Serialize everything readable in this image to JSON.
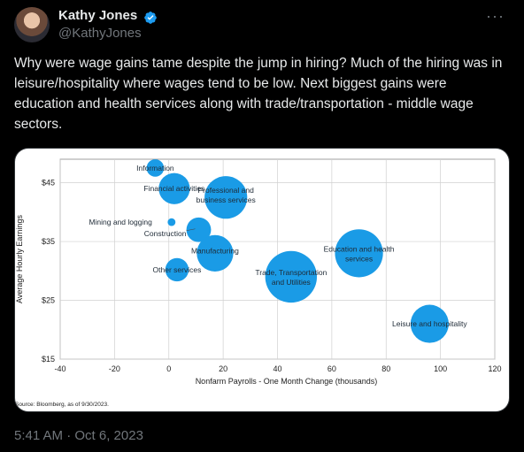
{
  "author": {
    "name": "Kathy Jones",
    "handle": "@KathyJones",
    "verified_color": "#1d9bf0"
  },
  "menu_icon": "more-horizontal-icon",
  "tweet": {
    "text": "Why were wage gains tame despite the jump in hiring? Much of the hiring was in leisure/hospitality where wages tend to be low. Next biggest gains were education and health services along with trade/transportation - middle wage sectors.",
    "timestamp": "5:41 AM · Oct 6, 2023"
  },
  "chart_data": {
    "type": "scatter",
    "bubble": true,
    "xlabel": "Nonfarm Payrolls - One Month Change (thousands)",
    "ylabel": "Average Hourly Earnings",
    "xlim": [
      -40,
      120
    ],
    "ylim": [
      15,
      49
    ],
    "xticks": [
      "-40",
      "-20",
      "0",
      "20",
      "40",
      "60",
      "80",
      "100",
      "120"
    ],
    "yticks": [
      "$15",
      "$25",
      "$35",
      "$45"
    ],
    "ytick_values": [
      15,
      25,
      35,
      45
    ],
    "xtick_values": [
      -40,
      -20,
      0,
      20,
      40,
      60,
      80,
      100,
      120
    ],
    "grid": true,
    "bubble_color": "#1a9be6",
    "points": [
      {
        "label": "Information",
        "x": -5,
        "y": 47.5,
        "size": 5
      },
      {
        "label": "Financial activities",
        "x": 2,
        "y": 44,
        "size": 16
      },
      {
        "label": "Professional and business services",
        "x": 21,
        "y": 42.5,
        "size": 30
      },
      {
        "label": "Mining and logging",
        "x": 1,
        "y": 38.3,
        "size": 1
      },
      {
        "label": "Construction",
        "x": 11,
        "y": 37,
        "size": 10
      },
      {
        "label": "Manufacturing",
        "x": 17,
        "y": 33,
        "size": 22
      },
      {
        "label": "Other services",
        "x": 3,
        "y": 30.2,
        "size": 9
      },
      {
        "label": "Trade, Transportation and Utilities",
        "x": 45,
        "y": 29,
        "size": 44
      },
      {
        "label": "Education and health services",
        "x": 70,
        "y": 33,
        "size": 38
      },
      {
        "label": "Leisure and hospitality",
        "x": 96,
        "y": 21,
        "size": 24
      }
    ],
    "source": "Source: Bloomberg, as of 9/30/2023."
  }
}
